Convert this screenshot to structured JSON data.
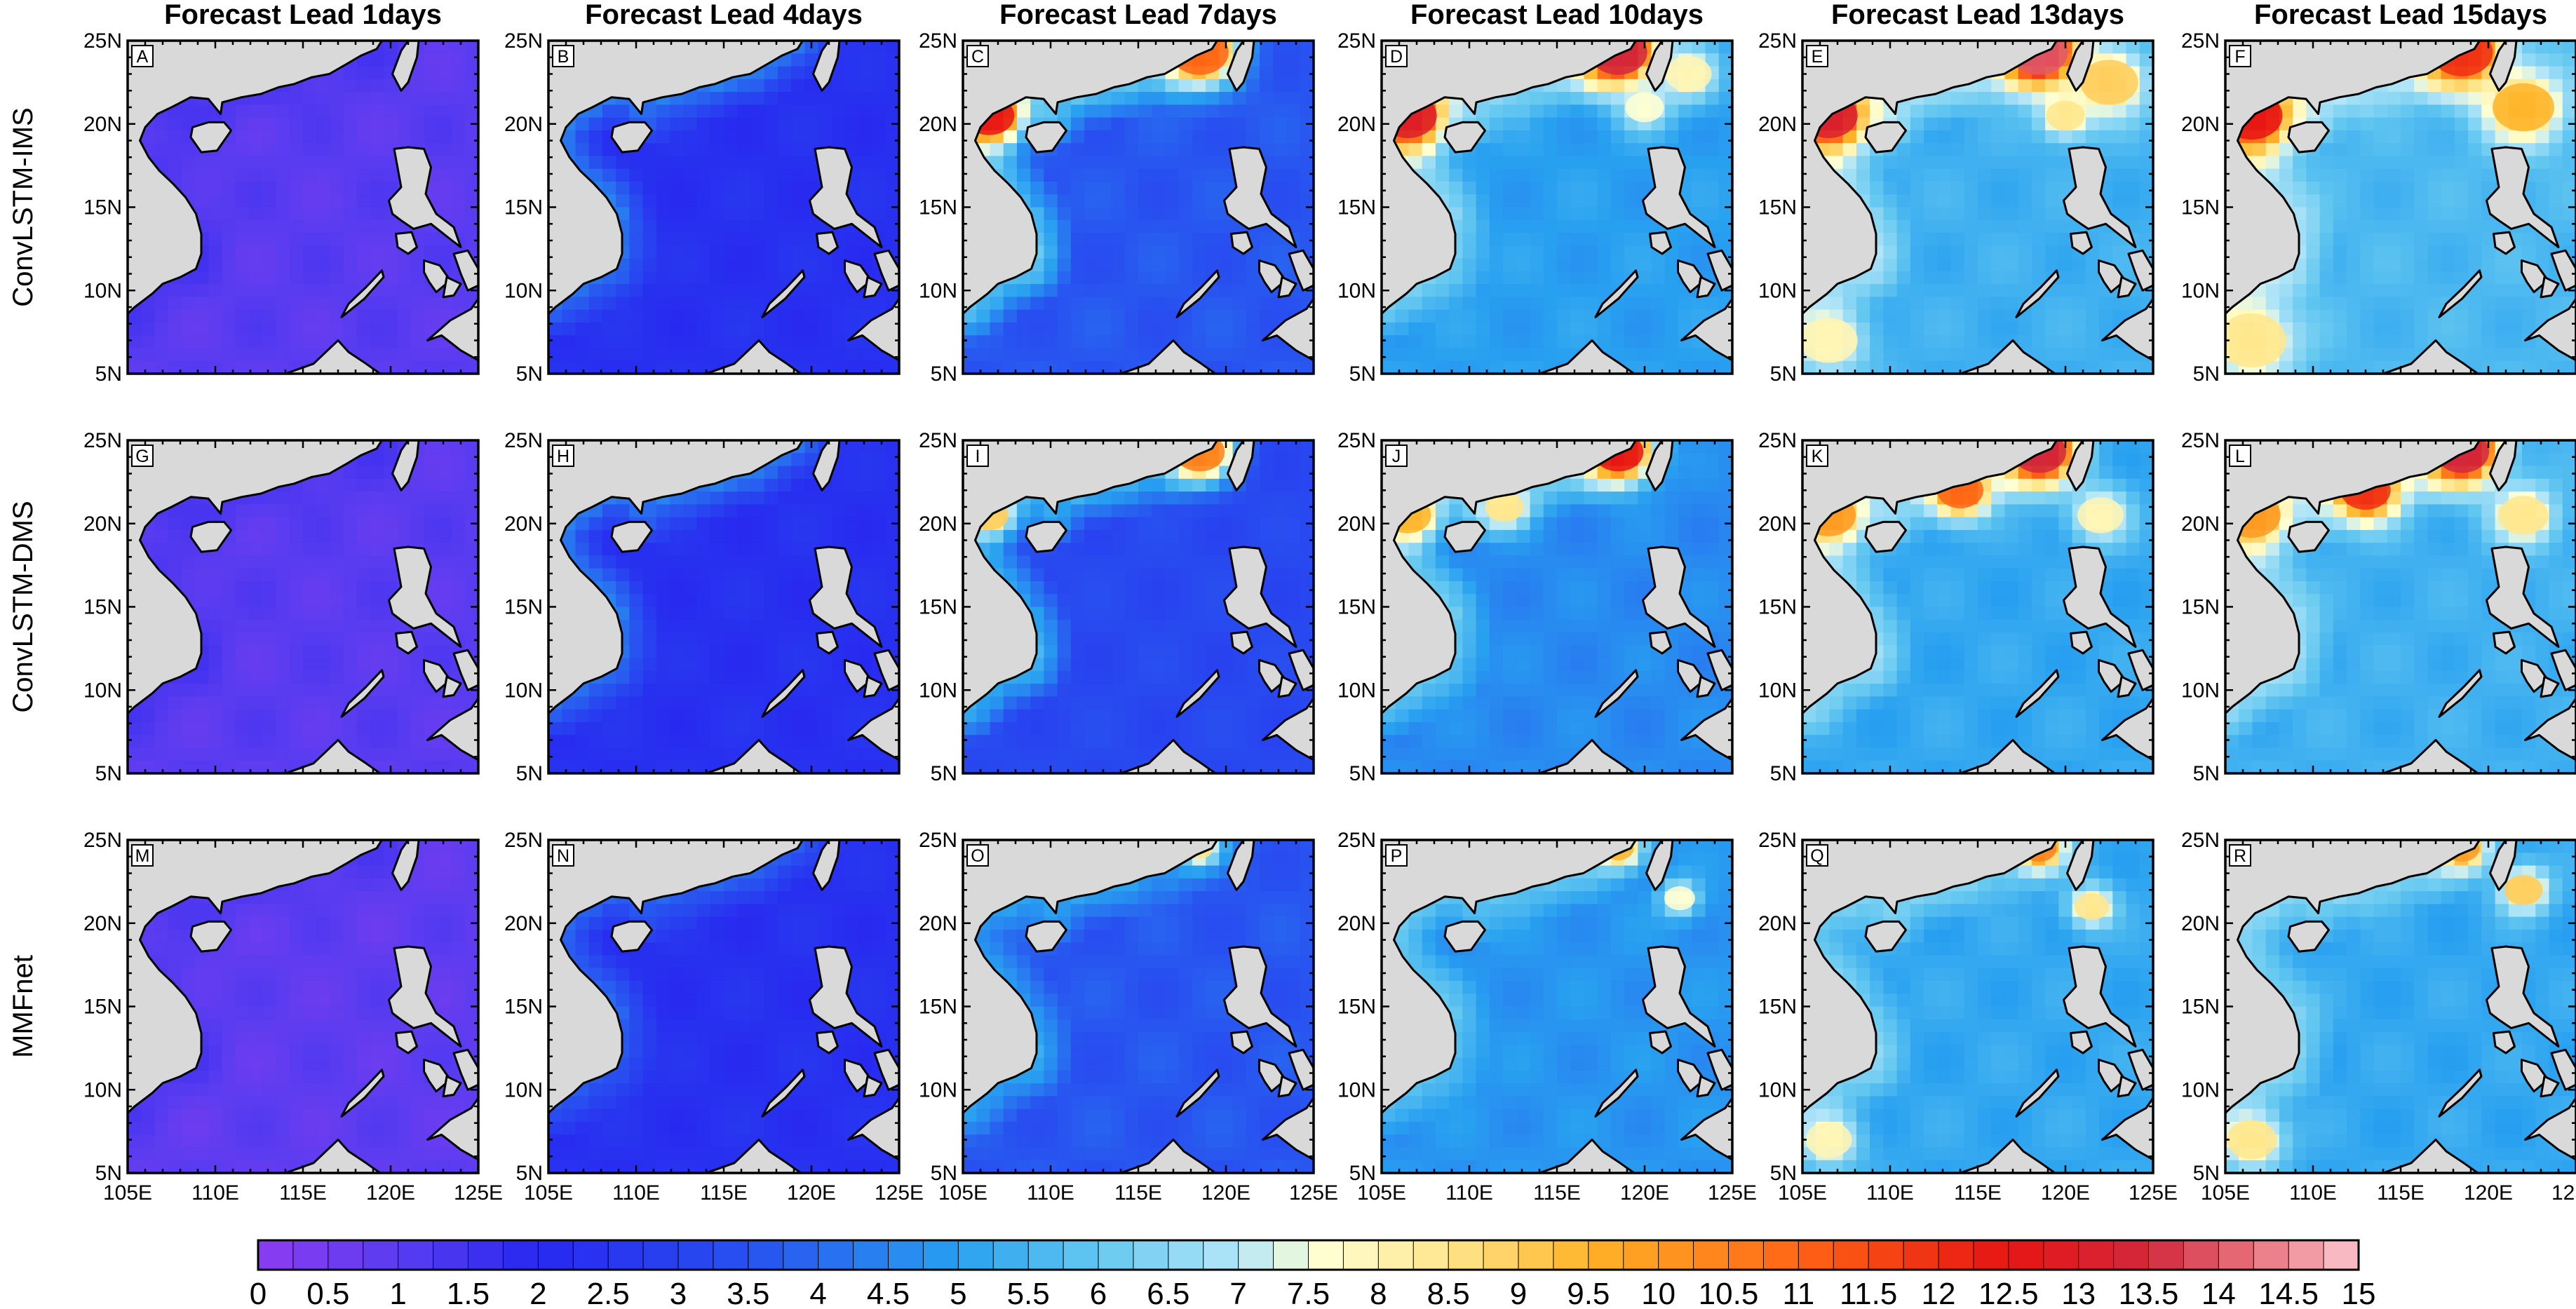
{
  "chart_data": {
    "type": "heatmap",
    "description_units": "error magnitude (colour scale 0-15)",
    "column_titles": [
      "Forecast Lead 1days",
      "Forecast Lead 4days",
      "Forecast Lead 7days",
      "Forecast Lead 10days",
      "Forecast Lead 13days",
      "Forecast Lead 15days"
    ],
    "lead_days": [
      1,
      4,
      7,
      10,
      13,
      15
    ],
    "row_labels": [
      "ConvLSTM-IMS",
      "ConvLSTM-DMS",
      "MMFnet"
    ],
    "panel_letters": [
      "A",
      "B",
      "C",
      "D",
      "E",
      "F",
      "G",
      "H",
      "I",
      "J",
      "K",
      "L",
      "M",
      "N",
      "O",
      "P",
      "Q",
      "R"
    ],
    "x_axis": {
      "range": [
        105,
        125
      ],
      "ticks": [
        105,
        110,
        115,
        120,
        125
      ],
      "tick_labels": [
        "105E",
        "110E",
        "115E",
        "120E",
        "125E"
      ]
    },
    "y_axis": {
      "range": [
        5,
        25
      ],
      "ticks": [
        5,
        10,
        15,
        20,
        25
      ],
      "tick_labels": [
        "5N",
        "10N",
        "15N",
        "20N",
        "25N"
      ]
    },
    "colorbar": {
      "min": 0,
      "max": 15,
      "step": 0.25,
      "labels": [
        "0",
        "0.5",
        "1",
        "1.5",
        "2",
        "2.5",
        "3",
        "3.5",
        "4",
        "4.5",
        "5",
        "5.5",
        "6",
        "6.5",
        "7",
        "7.5",
        "8",
        "8.5",
        "9",
        "9.5",
        "10",
        "10.5",
        "11",
        "11.5",
        "12",
        "12.5",
        "13",
        "13.5",
        "14",
        "14.5",
        "15"
      ],
      "stops": [
        {
          "v": 0,
          "c": "#8c3cf0"
        },
        {
          "v": 1,
          "c": "#5a3cf0"
        },
        {
          "v": 2,
          "c": "#2828f0"
        },
        {
          "v": 3.5,
          "c": "#2850f0"
        },
        {
          "v": 5,
          "c": "#28a0f0"
        },
        {
          "v": 6,
          "c": "#64c8f0"
        },
        {
          "v": 7,
          "c": "#b4e6f8"
        },
        {
          "v": 7.6,
          "c": "#ffffd2"
        },
        {
          "v": 8.5,
          "c": "#ffe68c"
        },
        {
          "v": 9.5,
          "c": "#ffb428"
        },
        {
          "v": 11,
          "c": "#ff6414"
        },
        {
          "v": 12.5,
          "c": "#e61414"
        },
        {
          "v": 13.5,
          "c": "#d2283c"
        },
        {
          "v": 14.5,
          "c": "#f08c96"
        },
        {
          "v": 15,
          "c": "#fac8d2"
        }
      ]
    },
    "panel_values": [
      {
        "letter": "A",
        "model": "ConvLSTM-IMS",
        "lead": 1,
        "background": 1.0,
        "coast": 1.3,
        "hotspots": []
      },
      {
        "letter": "B",
        "model": "ConvLSTM-IMS",
        "lead": 4,
        "background": 2.3,
        "coast": 4.5,
        "hotspots": []
      },
      {
        "letter": "C",
        "model": "ConvLSTM-IMS",
        "lead": 7,
        "background": 3.6,
        "coast": 6.0,
        "hotspots": [
          {
            "lon": 106.5,
            "lat": 20.5,
            "v": 12.5,
            "r": 1.3
          },
          {
            "lon": 118.5,
            "lat": 24.3,
            "v": 11,
            "r": 1.5
          }
        ]
      },
      {
        "letter": "D",
        "model": "ConvLSTM-IMS",
        "lead": 10,
        "background": 5.0,
        "coast": 6.5,
        "hotspots": [
          {
            "lon": 106.5,
            "lat": 20.5,
            "v": 13,
            "r": 1.5
          },
          {
            "lon": 118.5,
            "lat": 24.3,
            "v": 13.5,
            "r": 1.5
          },
          {
            "lon": 122.5,
            "lat": 23,
            "v": 8,
            "r": 1.2
          },
          {
            "lon": 120,
            "lat": 21,
            "v": 7.6,
            "r": 1
          }
        ]
      },
      {
        "letter": "E",
        "model": "ConvLSTM-IMS",
        "lead": 13,
        "background": 5.4,
        "coast": 6.8,
        "hotspots": [
          {
            "lon": 106.5,
            "lat": 20.5,
            "v": 13.2,
            "r": 1.5
          },
          {
            "lon": 118.5,
            "lat": 24.3,
            "v": 14,
            "r": 1.5
          },
          {
            "lon": 122.5,
            "lat": 22.5,
            "v": 9,
            "r": 1.5
          },
          {
            "lon": 120,
            "lat": 20.5,
            "v": 8.5,
            "r": 1
          },
          {
            "lon": 106.5,
            "lat": 7,
            "v": 8,
            "r": 1.5
          }
        ]
      },
      {
        "letter": "F",
        "model": "ConvLSTM-IMS",
        "lead": 15,
        "background": 5.6,
        "coast": 7.0,
        "hotspots": [
          {
            "lon": 106.5,
            "lat": 20.5,
            "v": 12.5,
            "r": 1.6
          },
          {
            "lon": 118.5,
            "lat": 24.3,
            "v": 12,
            "r": 1.6
          },
          {
            "lon": 122,
            "lat": 21,
            "v": 9.5,
            "r": 1.6
          },
          {
            "lon": 106.5,
            "lat": 7,
            "v": 8.5,
            "r": 1.8
          }
        ]
      },
      {
        "letter": "G",
        "model": "ConvLSTM-DMS",
        "lead": 1,
        "background": 1.0,
        "coast": 1.3,
        "hotspots": []
      },
      {
        "letter": "H",
        "model": "ConvLSTM-DMS",
        "lead": 4,
        "background": 2.3,
        "coast": 4.5,
        "hotspots": []
      },
      {
        "letter": "I",
        "model": "ConvLSTM-DMS",
        "lead": 7,
        "background": 3.2,
        "coast": 5.5,
        "hotspots": [
          {
            "lon": 106.5,
            "lat": 20.5,
            "v": 9,
            "r": 1
          },
          {
            "lon": 118.5,
            "lat": 24.3,
            "v": 10.5,
            "r": 1.3
          }
        ]
      },
      {
        "letter": "J",
        "model": "ConvLSTM-DMS",
        "lead": 10,
        "background": 4.6,
        "coast": 6.2,
        "hotspots": [
          {
            "lon": 106.5,
            "lat": 20.5,
            "v": 9.5,
            "r": 1.2
          },
          {
            "lon": 118.5,
            "lat": 24.3,
            "v": 12.5,
            "r": 1.3
          },
          {
            "lon": 112,
            "lat": 21,
            "v": 8.5,
            "r": 1
          }
        ]
      },
      {
        "letter": "K",
        "model": "ConvLSTM-DMS",
        "lead": 13,
        "background": 5.2,
        "coast": 6.6,
        "hotspots": [
          {
            "lon": 106.5,
            "lat": 20.5,
            "v": 10,
            "r": 1.4
          },
          {
            "lon": 118.5,
            "lat": 24.3,
            "v": 13.5,
            "r": 1.4
          },
          {
            "lon": 114,
            "lat": 22,
            "v": 11,
            "r": 1.2
          },
          {
            "lon": 122,
            "lat": 20.5,
            "v": 8,
            "r": 1.2
          }
        ]
      },
      {
        "letter": "L",
        "model": "ConvLSTM-DMS",
        "lead": 15,
        "background": 5.4,
        "coast": 6.8,
        "hotspots": [
          {
            "lon": 106.5,
            "lat": 20.5,
            "v": 10,
            "r": 1.5
          },
          {
            "lon": 118.5,
            "lat": 24.3,
            "v": 13.5,
            "r": 1.4
          },
          {
            "lon": 113,
            "lat": 22,
            "v": 12,
            "r": 1.3
          },
          {
            "lon": 122,
            "lat": 20.5,
            "v": 8.5,
            "r": 1.3
          }
        ]
      },
      {
        "letter": "M",
        "model": "MMFnet",
        "lead": 1,
        "background": 0.9,
        "coast": 1.2,
        "hotspots": []
      },
      {
        "letter": "N",
        "model": "MMFnet",
        "lead": 4,
        "background": 2.3,
        "coast": 4.0,
        "hotspots": []
      },
      {
        "letter": "O",
        "model": "MMFnet",
        "lead": 7,
        "background": 3.6,
        "coast": 5.2,
        "hotspots": [
          {
            "lon": 118.5,
            "lat": 24.5,
            "v": 8.5,
            "r": 0.7
          }
        ]
      },
      {
        "letter": "P",
        "model": "MMFnet",
        "lead": 10,
        "background": 4.8,
        "coast": 6.0,
        "hotspots": [
          {
            "lon": 118.5,
            "lat": 24.5,
            "v": 9.5,
            "r": 0.8
          },
          {
            "lon": 122,
            "lat": 21.5,
            "v": 7.6,
            "r": 0.8
          }
        ]
      },
      {
        "letter": "Q",
        "model": "MMFnet",
        "lead": 13,
        "background": 5.2,
        "coast": 6.4,
        "hotspots": [
          {
            "lon": 118.5,
            "lat": 24.5,
            "v": 10.5,
            "r": 0.9
          },
          {
            "lon": 121.5,
            "lat": 21,
            "v": 8.5,
            "r": 0.9
          },
          {
            "lon": 106.5,
            "lat": 7,
            "v": 8,
            "r": 1.2
          }
        ]
      },
      {
        "letter": "R",
        "model": "MMFnet",
        "lead": 15,
        "background": 5.2,
        "coast": 6.5,
        "hotspots": [
          {
            "lon": 118.5,
            "lat": 24.5,
            "v": 10,
            "r": 0.9
          },
          {
            "lon": 122,
            "lat": 22,
            "v": 9,
            "r": 1
          },
          {
            "lon": 106.5,
            "lat": 7,
            "v": 8.5,
            "r": 1.3
          }
        ]
      }
    ]
  }
}
